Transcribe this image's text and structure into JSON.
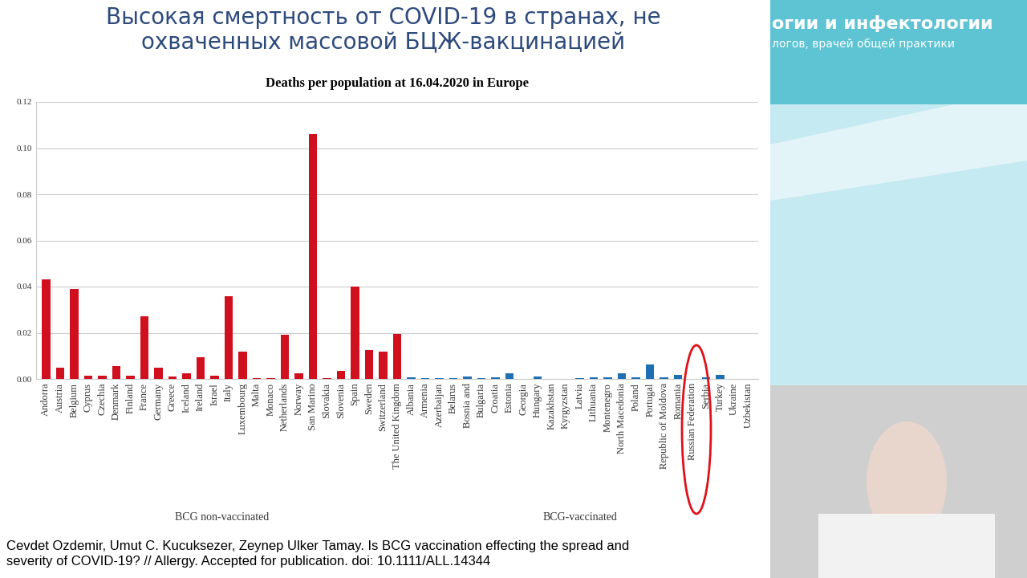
{
  "slide_title": [
    "Высокая смертность от COVID-19 в странах, не",
    "охваченных массовой БЦЖ-вакцинацией"
  ],
  "header": {
    "title": "огии и инфектологии",
    "subtitle": "логов, врачей общей практики"
  },
  "citation": [
    "Cevdet Ozdemir, Umut C. Kucuksezer, Zeynep Ulker Tamay. Is BCG vaccination effecting the spread and",
    "severity of COVID-19? // Allergy. Accepted for publication. doi: 10.1111/ALL.14344"
  ],
  "chart_data": {
    "type": "bar",
    "title": "Deaths per population at 16.04.2020 in Europe",
    "categories": [
      "Andorra",
      "Austria",
      "Belgium",
      "Cyprus",
      "Czechia",
      "Denmark",
      "Finland",
      "France",
      "Germany",
      "Greece",
      "Iceland",
      "Ireland",
      "Israel",
      "Italy",
      "Luxembourg",
      "Malta",
      "Monaco",
      "Netherlands",
      "Norway",
      "San Marino",
      "Slovakia",
      "Slovenia",
      "Spain",
      "Sweden",
      "Switzerland",
      "The United Kingdom",
      "Albania",
      "Armenia",
      "Azerbaijan",
      "Belarus",
      "Bosnia and",
      "Bulgaria",
      "Croatia",
      "Estonia",
      "Georgia",
      "Hungary",
      "Kazakhstan",
      "Kyrgyzstan",
      "Latvia",
      "Lithuania",
      "Montenegro",
      "North Macedonia",
      "Poland",
      "Portugal",
      "Republic of Moldova",
      "Romania",
      "Russian Federation",
      "Serbia",
      "Turkey",
      "Ukraine",
      "Uzbekistan"
    ],
    "series": [
      {
        "name": "BCG non-vaccinated",
        "color": "#d0101e",
        "values": [
          0.043,
          0.005,
          0.039,
          0.0015,
          0.0015,
          0.0055,
          0.0015,
          0.027,
          0.005,
          0.001,
          0.0025,
          0.0095,
          0.0015,
          0.036,
          0.012,
          0.0005,
          0.0005,
          0.019,
          0.0025,
          0.106,
          0.0003,
          0.0035,
          0.04,
          0.0125,
          0.012,
          0.0195,
          null,
          null,
          null,
          null,
          null,
          null,
          null,
          null,
          null,
          null,
          null,
          null,
          null,
          null,
          null,
          null,
          null,
          null,
          null,
          null,
          null,
          null,
          null,
          null,
          null
        ]
      },
      {
        "name": "BCG-vaccinated",
        "color": "#1f6fb4",
        "values": [
          null,
          null,
          null,
          null,
          null,
          null,
          null,
          null,
          null,
          null,
          null,
          null,
          null,
          null,
          null,
          null,
          null,
          null,
          null,
          null,
          null,
          null,
          null,
          null,
          null,
          null,
          0.0006,
          0.0005,
          0.0002,
          0.0003,
          0.001,
          0.0005,
          0.0006,
          0.0025,
          0.0001,
          0.0012,
          0.0001,
          0.0001,
          0.0002,
          0.0007,
          0.0008,
          0.0023,
          0.0006,
          0.0063,
          0.0007,
          0.0019,
          0.0001,
          0.0006,
          0.0016,
          0.0001,
          0.0
        ]
      }
    ],
    "ylim": [
      0,
      0.12
    ],
    "yticks": [
      {
        "value": 0,
        "label": "0.00"
      },
      {
        "value": 0.02,
        "label": "0.02"
      },
      {
        "value": 0.04,
        "label": "0.04"
      },
      {
        "value": 0.06,
        "label": "0.06"
      },
      {
        "value": 0.08,
        "label": "0.08"
      },
      {
        "value": 0.1,
        "label": "0.10"
      },
      {
        "value": 0.12,
        "label": "0.12"
      }
    ],
    "grid": true
  }
}
